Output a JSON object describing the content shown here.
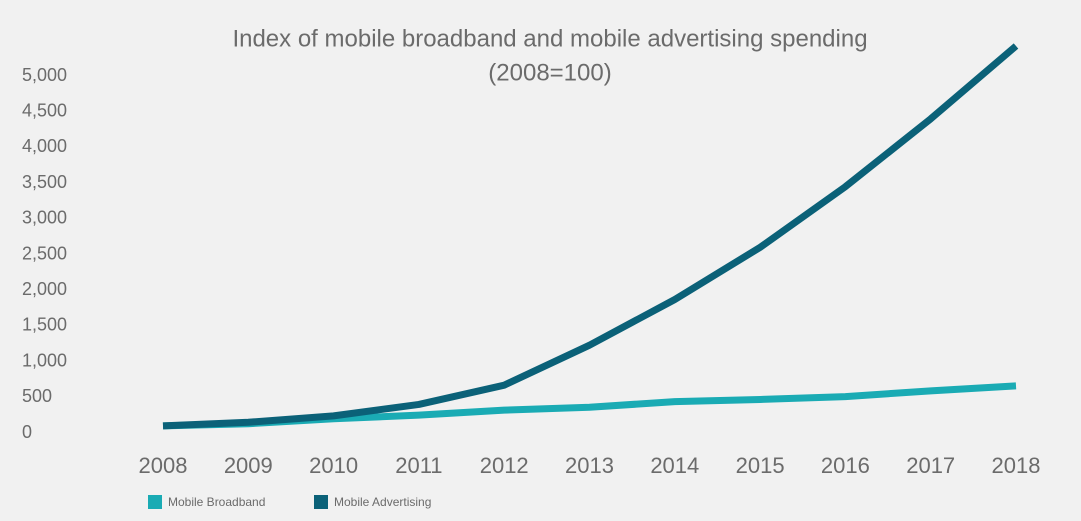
{
  "chart_data": {
    "type": "line",
    "title": "Index of mobile broadband and mobile advertising spending",
    "subtitle": "(2008=100)",
    "categories": [
      "2008",
      "2009",
      "2010",
      "2011",
      "2012",
      "2013",
      "2014",
      "2015",
      "2016",
      "2017",
      "2018"
    ],
    "series": [
      {
        "name": "Mobile Broadband",
        "color": "#1aabb4",
        "values": [
          100,
          130,
          200,
          250,
          320,
          360,
          440,
          470,
          510,
          590,
          660
        ]
      },
      {
        "name": "Mobile Advertising",
        "color": "#0b6178",
        "values": [
          100,
          150,
          240,
          400,
          670,
          1230,
          1870,
          2600,
          3450,
          4400,
          5420
        ]
      }
    ],
    "ylim": [
      0,
      5000
    ],
    "yticks": [
      0,
      500,
      {
        "value": 1000,
        "label": "1,000"
      },
      {
        "value": 1500,
        "label": "1,500"
      },
      {
        "value": 2000,
        "label": "2,000"
      },
      {
        "value": 2500,
        "label": "2,500"
      },
      {
        "value": 3000,
        "label": "3,000"
      },
      {
        "value": 3500,
        "label": "3,500"
      },
      {
        "value": 4000,
        "label": "4,000"
      },
      {
        "value": 4500,
        "label": "4,500"
      },
      {
        "value": 5000,
        "label": "5,000"
      }
    ],
    "grid": false,
    "legend": "bottom-left"
  }
}
